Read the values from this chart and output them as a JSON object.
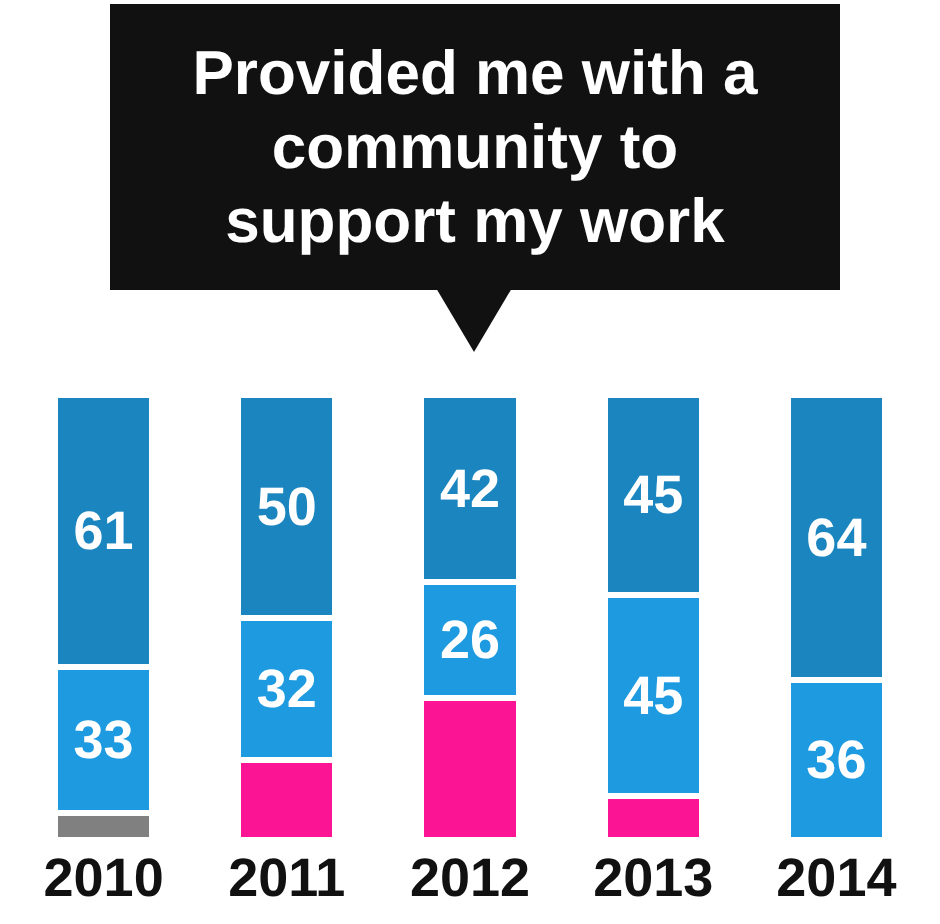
{
  "chart_data": {
    "type": "bar",
    "title": "Provided me with a community to support my work",
    "categories": [
      "2010",
      "2011",
      "2012",
      "2013",
      "2014"
    ],
    "stacked": true,
    "legend": false,
    "grid": false,
    "series": [
      {
        "color": "#808080",
        "values": [
          6,
          null,
          null,
          null,
          null
        ],
        "value_labels": [
          null,
          null,
          null,
          null,
          null
        ]
      },
      {
        "color": "#fb1493",
        "values": [
          null,
          18,
          32,
          10,
          null
        ],
        "value_labels": [
          null,
          null,
          null,
          null,
          null
        ]
      },
      {
        "color": "#1e9be0",
        "values": [
          33,
          32,
          26,
          45,
          36
        ],
        "value_labels": [
          "33",
          "32",
          "26",
          "45",
          "36"
        ]
      },
      {
        "color": "#1a85bf",
        "values": [
          61,
          50,
          42,
          45,
          64
        ],
        "value_labels": [
          "61",
          "50",
          "42",
          "45",
          "64"
        ]
      }
    ]
  }
}
